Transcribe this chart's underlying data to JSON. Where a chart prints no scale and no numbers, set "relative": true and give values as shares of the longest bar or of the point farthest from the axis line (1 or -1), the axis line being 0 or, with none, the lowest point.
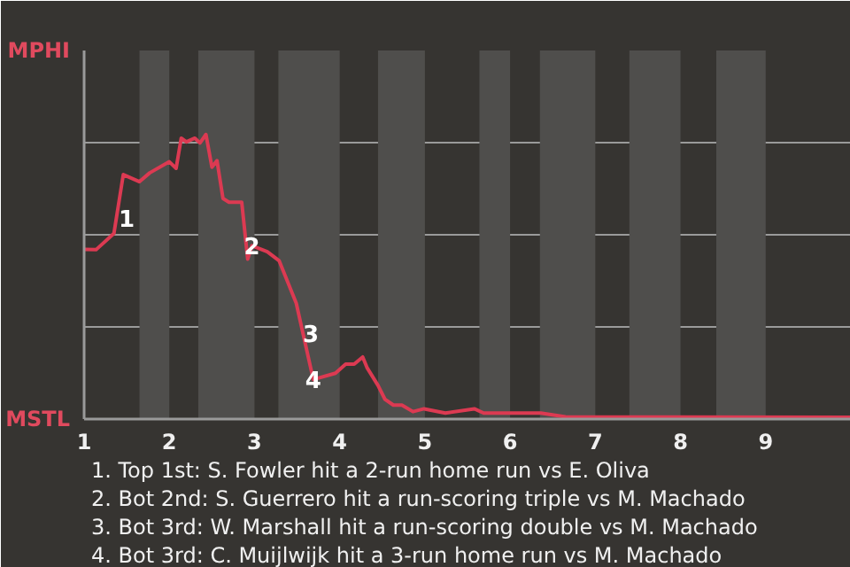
{
  "chart_data": {
    "type": "line",
    "relative": true,
    "x": [
      1.01,
      1.14,
      1.35,
      1.46,
      1.65,
      1.77,
      2.0,
      2.08,
      2.14,
      2.2,
      2.3,
      2.36,
      2.43,
      2.5,
      2.56,
      2.63,
      2.7,
      2.85,
      2.92,
      2.97,
      3.15,
      3.29,
      3.49,
      3.69,
      3.95,
      4.07,
      4.17,
      4.27,
      4.32,
      4.45,
      4.53,
      4.63,
      4.73,
      4.86,
      4.99,
      5.24,
      5.58,
      5.69,
      6.36,
      6.65,
      10
    ],
    "series": [
      {
        "color": "#dc3a52",
        "values": [
          0.596,
          0.595,
          0.652,
          0.859,
          0.834,
          0.865,
          0.904,
          0.881,
          0.987,
          0.974,
          0.987,
          0.97,
          1.0,
          0.885,
          0.908,
          0.775,
          0.762,
          0.762,
          0.562,
          0.609,
          0.588,
          0.556,
          0.407,
          0.139,
          0.161,
          0.193,
          0.193,
          0.218,
          0.181,
          0.118,
          0.07,
          0.049,
          0.049,
          0.026,
          0.036,
          0.021,
          0.036,
          0.021,
          0.021,
          0.008,
          0.006
        ]
      }
    ],
    "xlim": [
      1,
      10
    ],
    "xticks": [
      1,
      2,
      3,
      4,
      5,
      6,
      7,
      8,
      9
    ],
    "grid": "y",
    "bands": [
      {
        "axis": "x",
        "from": 1.65,
        "to": 2.0,
        "color": "#4f4e4c"
      },
      {
        "axis": "x",
        "from": 2.34,
        "to": 3.0,
        "color": "#4f4e4c"
      },
      {
        "axis": "x",
        "from": 3.28,
        "to": 4.0,
        "color": "#4f4e4c"
      },
      {
        "axis": "x",
        "from": 4.45,
        "to": 5.0,
        "color": "#4f4e4c"
      },
      {
        "axis": "x",
        "from": 5.64,
        "to": 6.0,
        "color": "#4f4e4c"
      },
      {
        "axis": "x",
        "from": 6.35,
        "to": 7.0,
        "color": "#4f4e4c"
      },
      {
        "axis": "x",
        "from": 7.4,
        "to": 8.0,
        "color": "#4f4e4c"
      },
      {
        "axis": "x",
        "from": 8.42,
        "to": 9.0,
        "color": "#4f4e4c"
      }
    ],
    "annotations": [
      {
        "text": "1",
        "x": 1.5,
        "y": 0.706
      },
      {
        "text": "2",
        "x": 2.97,
        "y": 0.609
      },
      {
        "text": "3",
        "x": 3.66,
        "y": 0.302
      },
      {
        "text": "4",
        "x": 3.69,
        "y": 0.139
      },
      "MPHI",
      "MSTL",
      "1. Top 1st: S. Fowler hit a 2-run home run vs E. Oliva",
      "2. Bot 2nd: S. Guerrero hit a run-scoring triple vs M. Machado",
      "3. Bot 3rd: W. Marshall hit a run-scoring double vs M. Machado",
      "4. Bot 3rd: C. Muijlwijk hit a 3-run home run vs M. Machado"
    ]
  }
}
